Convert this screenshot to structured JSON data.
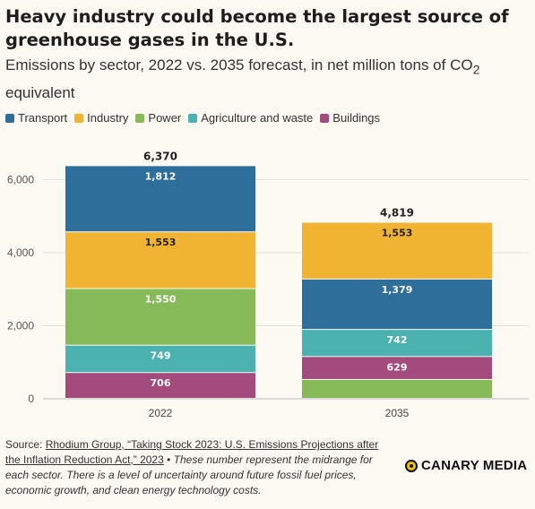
{
  "title": "Heavy industry could become the largest source of greenhouse gases in the U.S.",
  "subtitle_main": "Emissions by sector, 2022 vs. 2035 forecast, in net million tons of CO",
  "subtitle_sub": "2",
  "subtitle_tail": " equivalent",
  "legend": [
    {
      "name": "Transport",
      "color": "#2e6e9a"
    },
    {
      "name": "Industry",
      "color": "#f0b432"
    },
    {
      "name": "Power",
      "color": "#86b957"
    },
    {
      "name": "Agriculture and waste",
      "color": "#4cb2b0"
    },
    {
      "name": "Buildings",
      "color": "#a34b7c"
    }
  ],
  "chart_data": {
    "type": "bar",
    "stacked": true,
    "categories": [
      "2022",
      "2035"
    ],
    "ylim": [
      0,
      6600
    ],
    "yticks": [
      0,
      2000,
      4000,
      6000
    ],
    "ytick_labels": [
      "0",
      "2,000",
      "4,000",
      "6,000"
    ],
    "totals": [
      6370,
      4819
    ],
    "total_labels": [
      "6,370",
      "4,819"
    ],
    "stack_order": [
      [
        "Buildings",
        "Agriculture and waste",
        "Power",
        "Industry",
        "Transport"
      ],
      [
        "Power",
        "Buildings",
        "Agriculture and waste",
        "Transport",
        "Industry"
      ]
    ],
    "series": [
      {
        "name": "Transport",
        "values": [
          1812,
          1379
        ],
        "labels": [
          "1,812",
          "1,379"
        ]
      },
      {
        "name": "Industry",
        "values": [
          1553,
          1553
        ],
        "labels": [
          "1,553",
          "1,553"
        ]
      },
      {
        "name": "Power",
        "values": [
          1550,
          516
        ],
        "labels": [
          "1,550",
          ""
        ]
      },
      {
        "name": "Agriculture and waste",
        "values": [
          749,
          742
        ],
        "labels": [
          "749",
          "742"
        ]
      },
      {
        "name": "Buildings",
        "values": [
          706,
          629
        ],
        "labels": [
          "706",
          "629"
        ]
      }
    ],
    "grid": true
  },
  "source": {
    "prefix": "Source: ",
    "link_text": "Rhodium Group, “Taking Stock 2023: U.S. Emissions Projections after the Inflation Reduction Act,” 2023",
    "separator": " • ",
    "note": "These number represent the midrange for each sector. There is a level of uncertainty around future fossil fuel prices, economic growth, and clean energy technology costs."
  },
  "logo_text": "CANARY MEDIA"
}
